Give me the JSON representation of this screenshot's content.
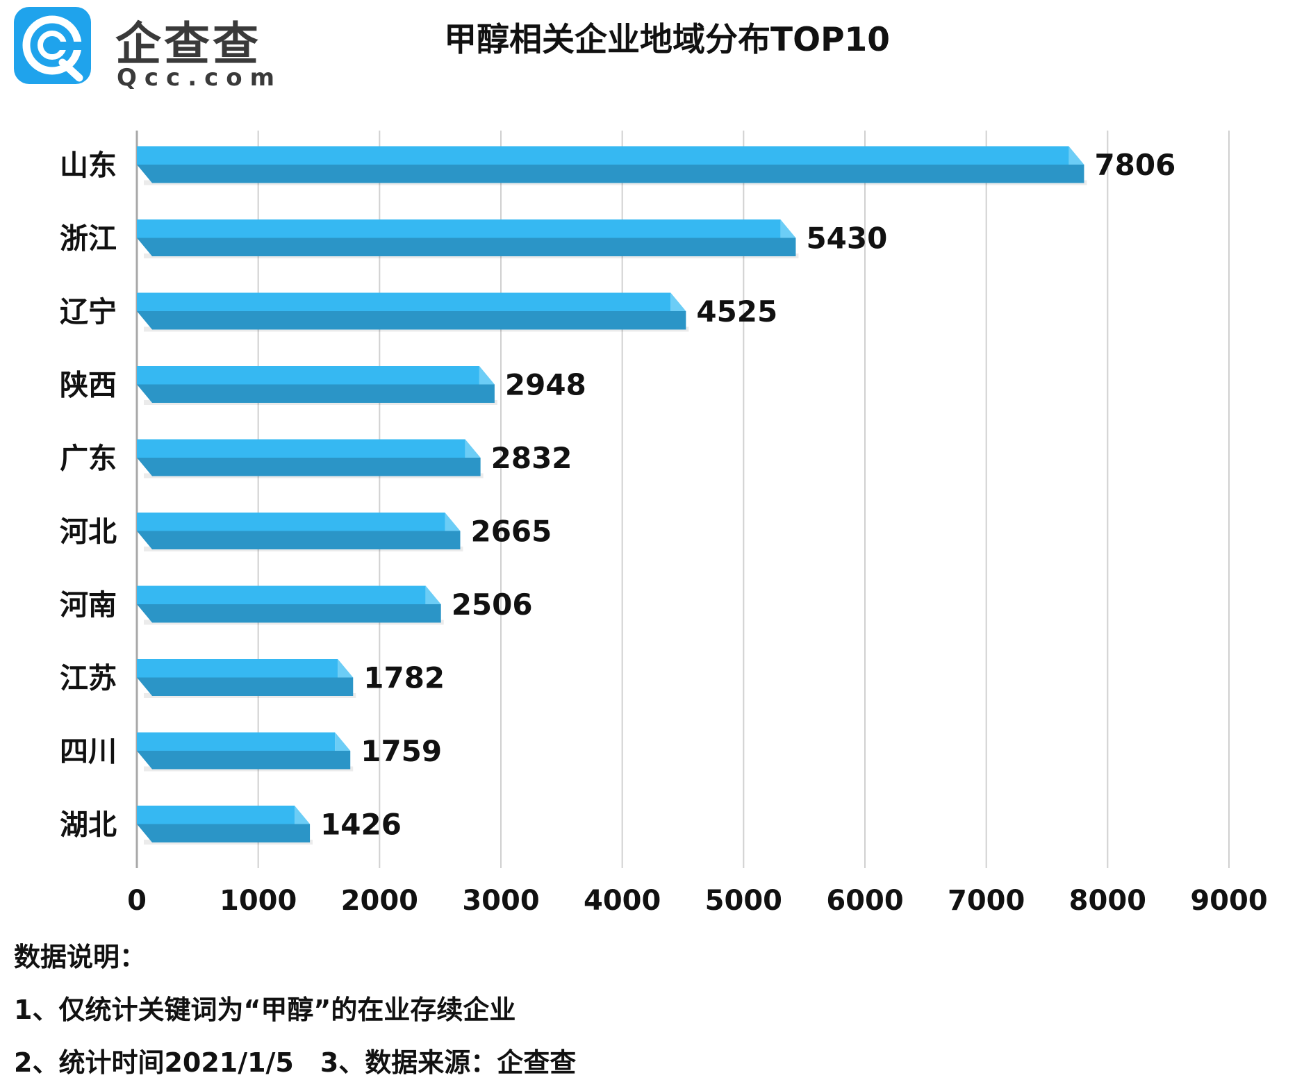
{
  "brand": {
    "name_cn": "企查查",
    "domain": "Qcc.com"
  },
  "colors": {
    "bar_top": "#36b8f2",
    "bar_front": "#2b95c7",
    "bar_end": "#6ccdf6",
    "grid": "#d0d0d0",
    "axis": "#a8a8a8"
  },
  "chart_data": {
    "type": "bar",
    "orientation": "horizontal",
    "title": "甲醇相关企业地域分布TOP10",
    "categories": [
      "山东",
      "浙江",
      "辽宁",
      "陕西",
      "广东",
      "河北",
      "河南",
      "江苏",
      "四川",
      "湖北"
    ],
    "values": [
      7806,
      5430,
      4525,
      2948,
      2832,
      2665,
      2506,
      1782,
      1759,
      1426
    ],
    "xlim": [
      0,
      9000
    ],
    "xticks": [
      0,
      1000,
      2000,
      3000,
      4000,
      5000,
      6000,
      7000,
      8000,
      9000
    ],
    "xlabel": "",
    "ylabel": "",
    "grid": "vertical",
    "data_labels": true
  },
  "notes": {
    "heading": "数据说明：",
    "line1": "1、仅统计关键词为“甲醇”的在业存续企业",
    "line2": "2、统计时间2021/1/5　3、数据来源：企查查"
  }
}
